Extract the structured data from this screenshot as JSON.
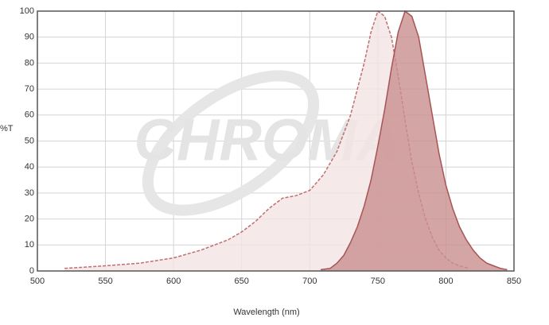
{
  "chart_data": {
    "type": "area",
    "watermark": "CHROMA",
    "xlabel": "Wavelength (nm)",
    "ylabel": "%T",
    "xlim": [
      500,
      850
    ],
    "xticks": [
      500,
      550,
      600,
      650,
      700,
      750,
      800,
      850
    ],
    "ylim": [
      0,
      100
    ],
    "yticks": [
      0,
      10,
      20,
      30,
      40,
      50,
      60,
      70,
      80,
      90,
      100
    ],
    "grid": true,
    "series": [
      {
        "color": "#c26e6e",
        "fill": "#f3e3e3",
        "dashed": true,
        "x": [
          520,
          550,
          575,
          600,
          620,
          640,
          650,
          660,
          670,
          680,
          690,
          700,
          710,
          720,
          730,
          740,
          745,
          750,
          755,
          760,
          765,
          770,
          775,
          780,
          785,
          790,
          795,
          800,
          805,
          810,
          817
        ],
        "values": [
          1,
          2,
          3,
          5,
          8,
          12,
          15,
          19,
          24,
          28,
          29,
          31,
          37,
          46,
          60,
          80,
          92,
          100,
          98,
          90,
          75,
          58,
          42,
          30,
          20,
          13,
          8,
          5,
          3,
          2,
          1
        ]
      },
      {
        "color": "#a85454",
        "fill": "#c98f8f",
        "dashed": false,
        "x": [
          708,
          715,
          720,
          725,
          730,
          735,
          740,
          745,
          750,
          755,
          760,
          765,
          770,
          775,
          780,
          785,
          790,
          795,
          800,
          805,
          810,
          815,
          820,
          825,
          830,
          835,
          840,
          845
        ],
        "values": [
          0.5,
          1,
          3,
          6,
          11,
          17,
          25,
          35,
          48,
          62,
          78,
          92,
          100,
          98,
          90,
          75,
          60,
          45,
          33,
          24,
          17,
          12,
          8,
          5,
          3,
          2,
          1,
          0.5
        ]
      }
    ]
  }
}
